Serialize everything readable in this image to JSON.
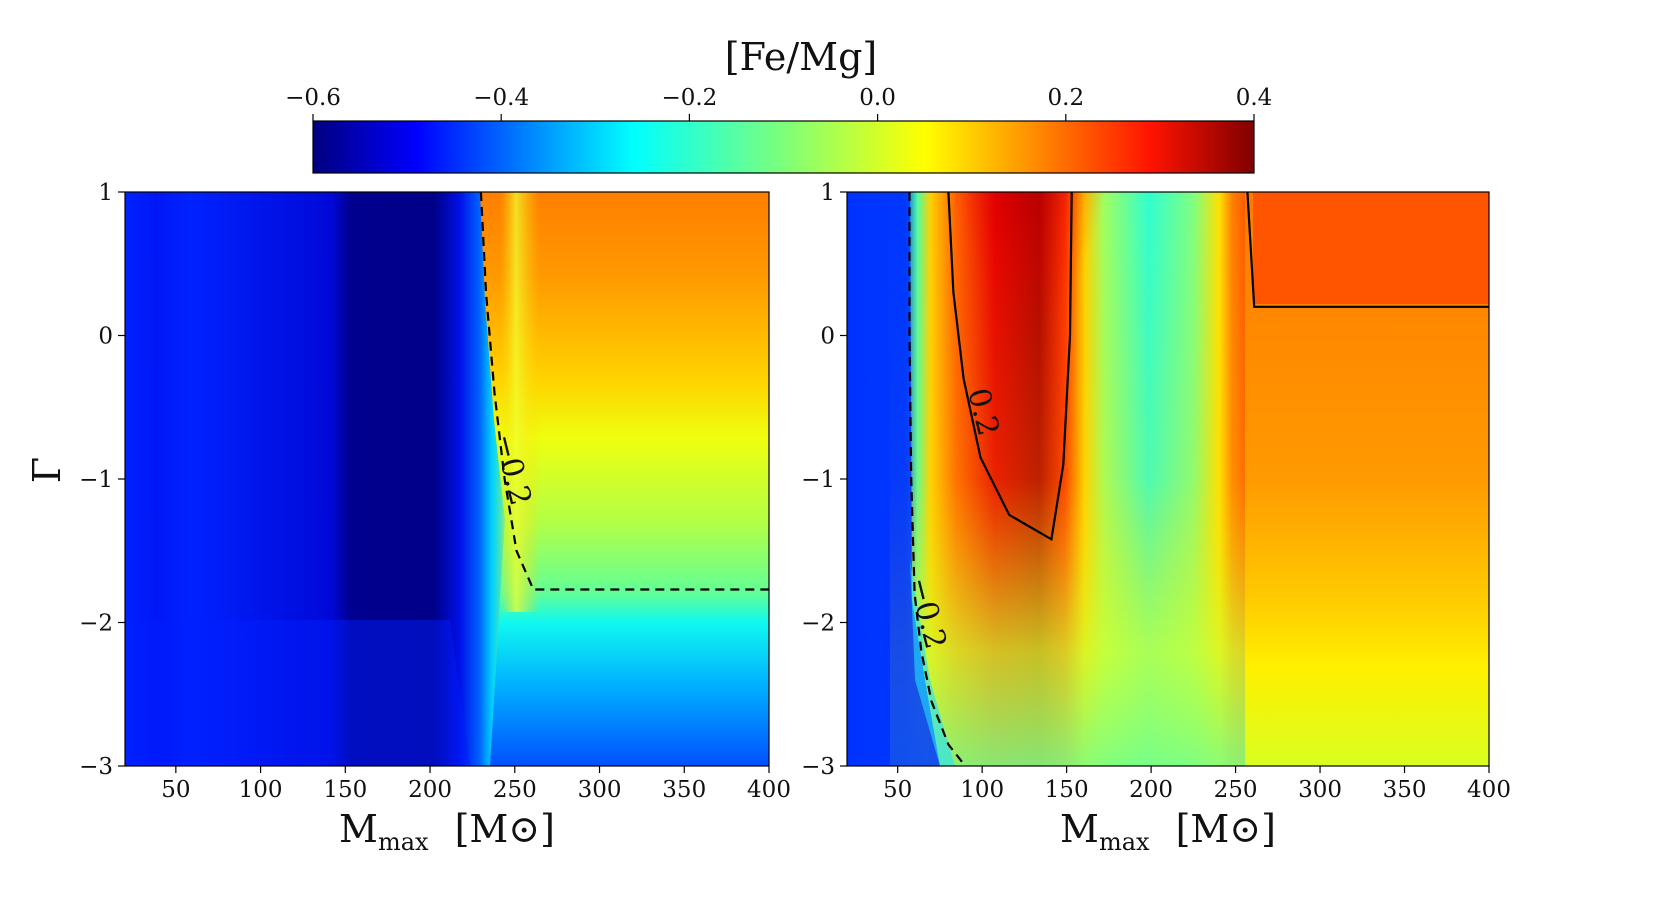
{
  "chart_data": {
    "type": "heatmap",
    "colorbar": {
      "title": "[Fe/Mg]",
      "min": -0.6,
      "max": 0.4,
      "ticks": [
        {
          "value": -0.6,
          "label": "−0.6"
        },
        {
          "value": -0.4,
          "label": "−0.4"
        },
        {
          "value": -0.2,
          "label": "−0.2"
        },
        {
          "value": 0.0,
          "label": "0.0"
        },
        {
          "value": 0.2,
          "label": "0.2"
        },
        {
          "value": 0.4,
          "label": "0.4"
        }
      ],
      "colormap": "jet"
    },
    "panels": [
      {
        "id": "left",
        "xlabel_main": "M",
        "xlabel_sub": "max",
        "xlabel_unit": "[M⊙]",
        "ylabel": "Γ",
        "xlim": [
          20,
          400
        ],
        "ylim": [
          -3,
          1
        ],
        "xticks": [
          {
            "value": 50,
            "label": "50"
          },
          {
            "value": 100,
            "label": "100"
          },
          {
            "value": 150,
            "label": "150"
          },
          {
            "value": 200,
            "label": "200"
          },
          {
            "value": 250,
            "label": "250"
          },
          {
            "value": 300,
            "label": "300"
          },
          {
            "value": 350,
            "label": "350"
          },
          {
            "value": 400,
            "label": "400"
          }
        ],
        "yticks": [
          {
            "value": 1,
            "label": "1"
          },
          {
            "value": 0,
            "label": "0"
          },
          {
            "value": -1,
            "label": "−1"
          },
          {
            "value": -2,
            "label": "−2"
          },
          {
            "value": -3,
            "label": "−3"
          }
        ],
        "contours": [
          {
            "level": -0.2,
            "label": "−0.2",
            "style": "dashed",
            "points": [
              [
                230,
                1
              ],
              [
                233,
                0.3
              ],
              [
                238,
                -0.4
              ],
              [
                244,
                -1.0
              ],
              [
                251,
                -1.5
              ],
              [
                261,
                -1.77
              ],
              [
                400,
                -1.77
              ]
            ],
            "label_at": [
              243,
              -0.95
            ]
          }
        ]
      },
      {
        "id": "right",
        "xlabel_main": "M",
        "xlabel_sub": "max",
        "xlabel_unit": "[M⊙]",
        "ylabel": "",
        "xlim": [
          20,
          400
        ],
        "ylim": [
          -3,
          1
        ],
        "xticks": [
          {
            "value": 50,
            "label": "50"
          },
          {
            "value": 100,
            "label": "100"
          },
          {
            "value": 150,
            "label": "150"
          },
          {
            "value": 200,
            "label": "200"
          },
          {
            "value": 250,
            "label": "250"
          },
          {
            "value": 300,
            "label": "300"
          },
          {
            "value": 350,
            "label": "350"
          },
          {
            "value": 400,
            "label": "400"
          }
        ],
        "yticks": [
          {
            "value": 1,
            "label": "1"
          },
          {
            "value": 0,
            "label": "0"
          },
          {
            "value": -1,
            "label": "−1"
          },
          {
            "value": -2,
            "label": "−2"
          },
          {
            "value": -3,
            "label": "−3"
          }
        ],
        "contours": [
          {
            "level": -0.2,
            "label": "−0.2",
            "style": "dashed",
            "points": [
              [
                57,
                1
              ],
              [
                57,
                0
              ],
              [
                58,
                -1
              ],
              [
                60,
                -1.8
              ],
              [
                64,
                -2.2
              ],
              [
                70,
                -2.55
              ],
              [
                80,
                -2.85
              ],
              [
                90,
                -3
              ]
            ],
            "label_at": [
              62,
              -1.95
            ]
          },
          {
            "level": 0.2,
            "label": "0.2",
            "style": "solid",
            "points": [
              [
                80,
                1
              ],
              [
                83,
                0.3
              ],
              [
                89,
                -0.3
              ],
              [
                99,
                -0.85
              ],
              [
                116,
                -1.25
              ],
              [
                141,
                -1.42
              ],
              [
                148,
                -0.9
              ],
              [
                152,
                0
              ],
              [
                153,
                1
              ]
            ],
            "label_at": [
              95,
              -0.55
            ]
          },
          {
            "level": 0.2,
            "label": "",
            "style": "solid",
            "points": [
              [
                257,
                1
              ],
              [
                261,
                0.2
              ],
              [
                400,
                0.2
              ]
            ],
            "label_at": null
          }
        ]
      }
    ]
  }
}
